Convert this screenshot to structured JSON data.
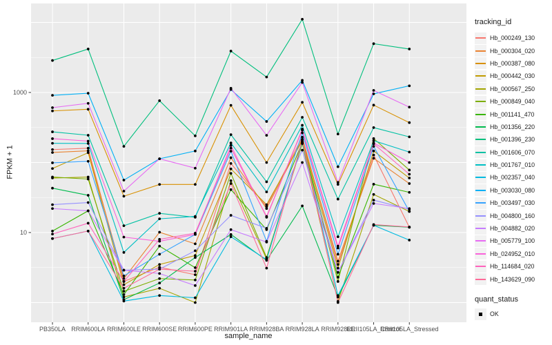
{
  "colors": {
    "panel_bg": "#EBEBEB",
    "gridline": "#FFFFFF",
    "tick_label": "#4D4D4D",
    "axis_title": "#1A1A1A",
    "point": "#000000",
    "legend_key_bg": "#F2F2F2"
  },
  "axes": {
    "y_title": "FPKM + 1",
    "x_title": "sample_name"
  },
  "legend": {
    "tracking_title": "tracking_id",
    "quant_title": "quant_status",
    "quant_items": [
      {
        "label": "OK"
      }
    ]
  },
  "chart_data": {
    "type": "line",
    "title": "",
    "xlabel": "sample_name",
    "ylabel": "FPKM + 1",
    "y_scale": "log10",
    "ylim_log10": [
      -0.3,
      4.27
    ],
    "grid": true,
    "legend_position": "right",
    "y_ticks": [
      {
        "label": "1000",
        "value": 1000
      },
      {
        "label": "10",
        "value": 10
      }
    ],
    "y_major_gridlines": [
      1,
      10,
      100,
      1000,
      10000
    ],
    "y_minor_gridlines_log10": [
      0.5,
      1.5,
      2.5,
      3.5
    ],
    "categories": [
      "PB350LA",
      "RRIM600LA",
      "RRIM600LE",
      "RRIM600SE",
      "RRIM600PE",
      "RRIM901LA",
      "RRIM928BA",
      "RRIM928LA",
      "RRIM928LE",
      "RRII105LA_Control",
      "RRII105LA_Stressed"
    ],
    "series": [
      {
        "name": "Hb_000249_130",
        "color": "#F8766D",
        "values": [
          153,
          160,
          2.0,
          3.2,
          2.5,
          97,
          23.5,
          230,
          3.5,
          128,
          11.9
        ]
      },
      {
        "name": "Hb_000304_020",
        "color": "#EA8331",
        "values": [
          139,
          147,
          2.2,
          10.1,
          6.9,
          117,
          22,
          215,
          3.9,
          115,
          50
        ]
      },
      {
        "name": "Hb_000387_080",
        "color": "#D89000",
        "values": [
          545,
          576,
          33,
          48.6,
          48.6,
          655,
          100,
          723,
          48.6,
          660,
          371
        ]
      },
      {
        "name": "Hb_000442_030",
        "color": "#C09B00",
        "values": [
          82,
          138,
          1.8,
          3.5,
          4.7,
          81,
          25,
          205,
          3.1,
          146,
          60
        ]
      },
      {
        "name": "Hb_000567_250",
        "color": "#A3A500",
        "values": [
          60,
          62,
          1.2,
          1.6,
          1.0,
          55,
          4.2,
          186,
          1.04,
          35,
          20
        ]
      },
      {
        "name": "Hb_000849_040",
        "color": "#7CAE00",
        "values": [
          62,
          58,
          1.45,
          2.2,
          2.1,
          70,
          4.4,
          190,
          2.0,
          220,
          78
        ]
      },
      {
        "name": "Hb_001141_470",
        "color": "#39B600",
        "values": [
          10.5,
          20.4,
          1.3,
          6.4,
          3.15,
          41,
          11,
          195,
          2.3,
          49,
          37.5
        ]
      },
      {
        "name": "Hb_001356_220",
        "color": "#00BB4E",
        "values": [
          43,
          34,
          1.1,
          1.9,
          4.4,
          9.4,
          4.0,
          24,
          1.2,
          12.7,
          11.9
        ]
      },
      {
        "name": "Hb_001396_230",
        "color": "#00BF7D",
        "values": [
          2860,
          4170,
          170,
          763,
          240,
          3900,
          1660,
          11100,
          255,
          4970,
          4170
        ]
      },
      {
        "name": "Hb_001606_070",
        "color": "#00C1A3",
        "values": [
          274,
          245,
          12.5,
          18.8,
          16.5,
          250,
          53,
          442,
          30,
          315,
          232
        ]
      },
      {
        "name": "Hb_001767_010",
        "color": "#00BFC4",
        "values": [
          188,
          187,
          5.2,
          15.7,
          17,
          190,
          38,
          340,
          8.7,
          205,
          141
        ]
      },
      {
        "name": "Hb_002357_040",
        "color": "#00BAE0",
        "values": [
          8.2,
          10.5,
          1.05,
          1.26,
          1.17,
          8.7,
          4.1,
          200,
          1.26,
          12.7,
          7.8
        ]
      },
      {
        "name": "Hb_003030_080",
        "color": "#00B0F6",
        "values": [
          910,
          975,
          56,
          113,
          146,
          1100,
          385,
          1490,
          87,
          955,
          1245
        ]
      },
      {
        "name": "Hb_003497_030",
        "color": "#35A2FF",
        "values": [
          99,
          104,
          2.4,
          4.9,
          9.4,
          145,
          7.5,
          265,
          4.9,
          170,
          20
        ]
      },
      {
        "name": "Hb_004800_160",
        "color": "#9590FF",
        "values": [
          25,
          26.8,
          2.9,
          3.0,
          5.5,
          17.6,
          11.5,
          150,
          2.7,
          29,
          21.5
        ]
      },
      {
        "name": "Hb_004882_020",
        "color": "#C77CFF",
        "values": [
          22,
          20.4,
          2.9,
          2.6,
          1.75,
          11,
          7.3,
          100,
          2.7,
          26,
          22
        ]
      },
      {
        "name": "Hb_005779_100",
        "color": "#E76BF3",
        "values": [
          607,
          700,
          39,
          113,
          83,
          1150,
          244,
          1390,
          52,
          1070,
          617
        ]
      },
      {
        "name": "Hb_024952_010",
        "color": "#FA62DB",
        "values": [
          219,
          202,
          8.6,
          7.5,
          9.4,
          175,
          16.5,
          300,
          6.4,
          190,
          100
        ]
      },
      {
        "name": "Hb_114684_020",
        "color": "#FF62BC",
        "values": [
          9.5,
          13.6,
          2.0,
          8.0,
          9.8,
          160,
          17,
          290,
          6.0,
          185,
          68
        ]
      },
      {
        "name": "Hb_143629_090",
        "color": "#FF6A98",
        "values": [
          8.2,
          10.5,
          1.6,
          3.0,
          2.8,
          50,
          3.1,
          212,
          1.0,
          13,
          12
        ]
      }
    ]
  }
}
